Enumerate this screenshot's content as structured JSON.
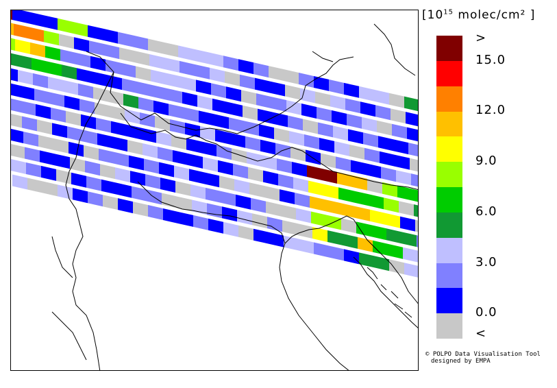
{
  "legend": {
    "unit_prefix": "[10",
    "unit_exp": "15",
    "unit_suffix": " molec/cm² ]",
    "ticks": [
      ">",
      "15.0",
      "12.0",
      "9.0",
      "6.0",
      "3.0",
      "0.0",
      "<"
    ],
    "colors": [
      "#800000",
      "#ff0000",
      "#ff8000",
      "#ffc000",
      "#ffff00",
      "#99ff00",
      "#00cc00",
      "#119933",
      "#bfbfff",
      "#8080ff",
      "#0000ff",
      "#c8c8c8"
    ]
  },
  "credit": {
    "line1": "© POLPO Data Visualisation Tool",
    "line2": "designed by EMPA"
  },
  "map": {
    "strip_colors_codes": [
      "0AAA55CC99BB8889A9BB",
      "3225BA99BB88998B9AAB",
      "543699A99B888A9AB998",
      "77667AAA9999A8AABAA9",
      "A89889BB79A99AA99AB8",
      "AA99A9BB89B9A8AA9A9B",
      "99A9BA9AAA8BAA9B889A",
      "B9BA99AAB89AA8A9BA98",
      "A9BBAB99A9A8AAB8BBA9",
      "B9AAB9B8A9AB899A9BB8",
      "89ABA9AA99BB89A8B9BB",
      "8BB8A9BAB9AA9A8BAA88"
    ],
    "strip_tail_codes": [
      "9A9A88B7",
      "8B89A9BA",
      "A9A98B9A",
      "B98A9AA9",
      "9A8B9AAB",
      "AB9AA989",
      "0033B566",
      "446665B7",
      "333344AB",
      "55B66779",
      "47736688",
      "99A77B88"
    ]
  }
}
